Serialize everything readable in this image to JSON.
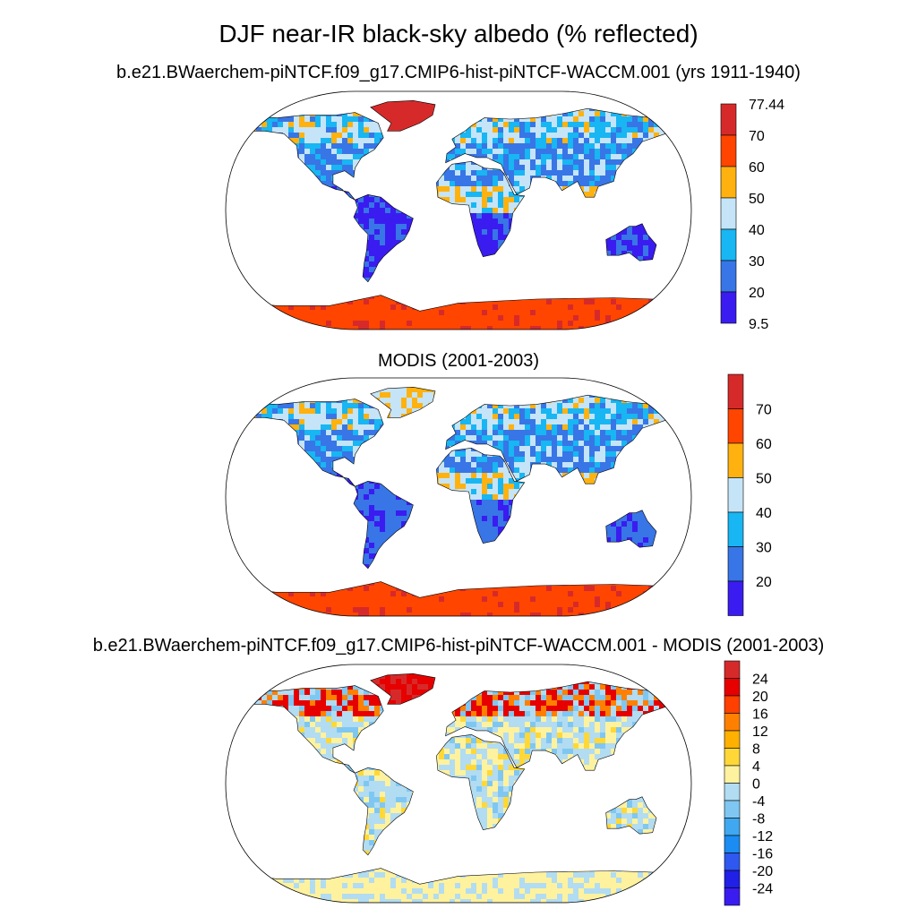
{
  "figure_title": "DJF near-IR black-sky albedo (% reflected)",
  "panels": [
    {
      "id": "model",
      "title": "b.e21.BWaerchem-piNTCF.f09_g17.CMIP6-hist-piNTCF-WACCM.001 (yrs 1911-1940)",
      "colorbar": {
        "levels": [
          "77.44",
          "70",
          "60",
          "50",
          "40",
          "30",
          "20",
          "9.5"
        ],
        "colors": [
          "#d62a2a",
          "#ff4500",
          "#ffb20f",
          "#c5e4f7",
          "#18b6f2",
          "#3875e6",
          "#3a1cf0"
        ]
      }
    },
    {
      "id": "obs",
      "title": "MODIS (2001-2003)",
      "colorbar": {
        "levels": [
          "",
          "70",
          "60",
          "50",
          "40",
          "30",
          "20",
          ""
        ],
        "colors": [
          "#d62a2a",
          "#ff4500",
          "#ffb20f",
          "#c5e4f7",
          "#18b6f2",
          "#3875e6",
          "#3a1cf0"
        ]
      }
    },
    {
      "id": "diff",
      "title": "b.e21.BWaerchem-piNTCF.f09_g17.CMIP6-hist-piNTCF-WACCM.001 - MODIS (2001-2003)",
      "colorbar": {
        "levels": [
          "",
          "24",
          "20",
          "16",
          "12",
          "8",
          "4",
          "0",
          "-4",
          "-8",
          "-12",
          "-16",
          "-20",
          "-24",
          ""
        ],
        "colors": [
          "#d62a2a",
          "#e60000",
          "#ff4000",
          "#ff8000",
          "#ffb000",
          "#ffd838",
          "#fff29f",
          "#b2dcf2",
          "#7fc7f2",
          "#3fa8f0",
          "#1b8cf2",
          "#2e58f0",
          "#2020e6",
          "#3a1cf0"
        ]
      }
    }
  ]
}
